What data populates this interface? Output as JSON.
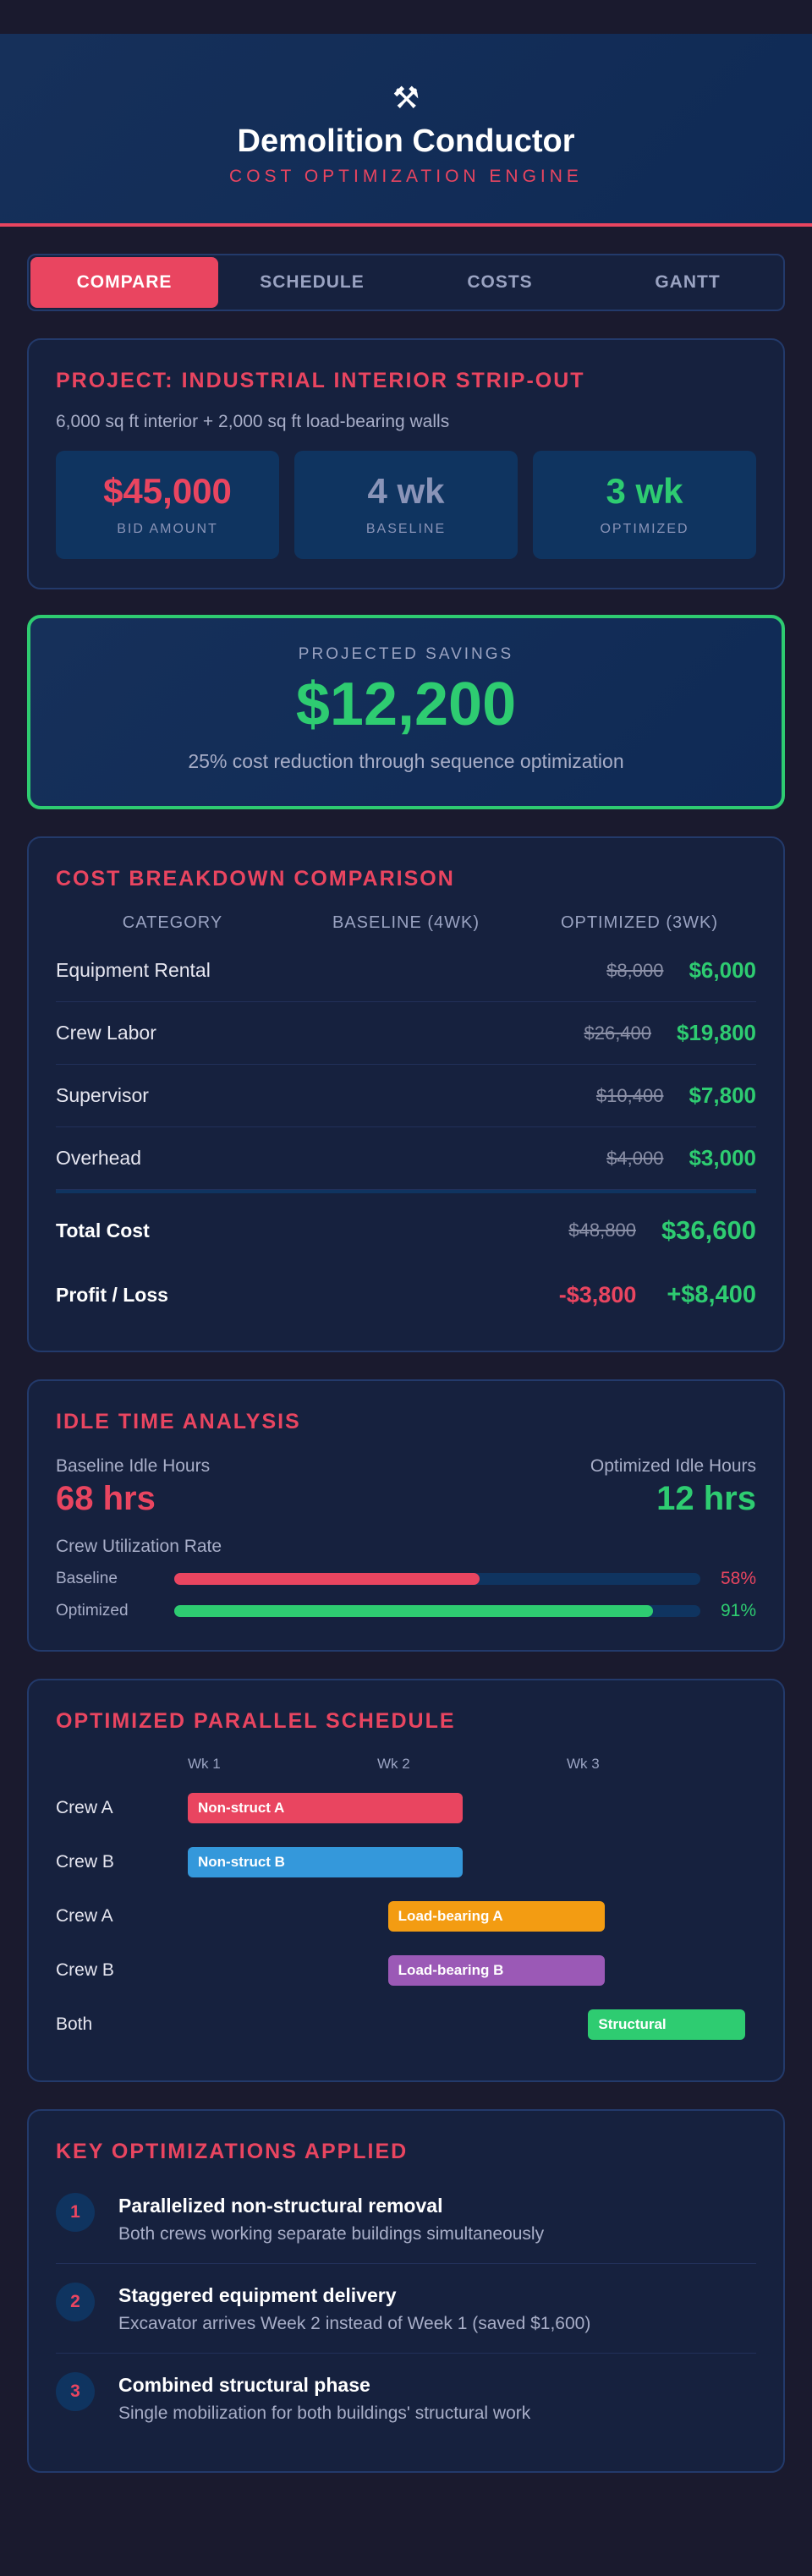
{
  "header": {
    "icon": "hammer-pick-icon",
    "title": "Demolition Conductor",
    "subtitle": "COST OPTIMIZATION ENGINE"
  },
  "tabs": [
    {
      "label": "COMPARE",
      "active": true
    },
    {
      "label": "SCHEDULE",
      "active": false
    },
    {
      "label": "COSTS",
      "active": false
    },
    {
      "label": "GANTT",
      "active": false
    }
  ],
  "project": {
    "title": "PROJECT: INDUSTRIAL INTERIOR STRIP-OUT",
    "description": "6,000 sq ft interior + 2,000 sq ft load-bearing walls",
    "stats": [
      {
        "value": "$45,000",
        "label": "BID AMOUNT",
        "color": "#e94560"
      },
      {
        "value": "4 wk",
        "label": "BASELINE",
        "color": "#8a94b8"
      },
      {
        "value": "3 wk",
        "label": "OPTIMIZED",
        "color": "#2ecc71"
      }
    ]
  },
  "savings": {
    "label": "PROJECTED SAVINGS",
    "value": "$12,200",
    "description": "25% cost reduction through sequence optimization"
  },
  "breakdown": {
    "title": "COST BREAKDOWN COMPARISON",
    "headers": [
      "CATEGORY",
      "BASELINE (4WK)",
      "OPTIMIZED (3WK)"
    ],
    "rows": [
      {
        "category": "Equipment Rental",
        "baseline": "$8,000",
        "optimized": "$6,000"
      },
      {
        "category": "Crew Labor",
        "baseline": "$26,400",
        "optimized": "$19,800"
      },
      {
        "category": "Supervisor",
        "baseline": "$10,400",
        "optimized": "$7,800"
      },
      {
        "category": "Overhead",
        "baseline": "$4,000",
        "optimized": "$3,000"
      }
    ],
    "total": {
      "category": "Total Cost",
      "baseline": "$48,800",
      "optimized": "$36,600"
    },
    "profit": {
      "category": "Profit / Loss",
      "baseline": "-$3,800",
      "optimized": "+$8,400"
    }
  },
  "idle": {
    "title": "IDLE TIME ANALYSIS",
    "baseline_label": "Baseline Idle Hours",
    "baseline_value": "68 hrs",
    "optimized_label": "Optimized Idle Hours",
    "optimized_value": "12 hrs",
    "util_title": "Crew Utilization Rate",
    "bars": [
      {
        "label": "Baseline",
        "pct_text": "58%",
        "fraction": 0.58,
        "color": "#e94560"
      },
      {
        "label": "Optimized",
        "pct_text": "91%",
        "fraction": 0.91,
        "color": "#2ecc71"
      }
    ]
  },
  "schedule": {
    "title": "OPTIMIZED PARALLEL SCHEDULE",
    "weeks": [
      "Wk 1",
      "Wk 2",
      "Wk 3"
    ],
    "tasks": [
      {
        "crew": "Crew A",
        "label": "Non-struct A",
        "start_week": 0,
        "end_week": 1.33,
        "color": "#e94560"
      },
      {
        "crew": "Crew B",
        "label": "Non-struct B",
        "start_week": 0,
        "end_week": 1.33,
        "color": "#3498db"
      },
      {
        "crew": "Crew A",
        "label": "Load-bearing A",
        "start_week": 0.97,
        "end_week": 2.02,
        "color": "#f39c12"
      },
      {
        "crew": "Crew B",
        "label": "Load-bearing B",
        "start_week": 0.97,
        "end_week": 2.02,
        "color": "#9b59b6"
      },
      {
        "crew": "Both",
        "label": "Structural",
        "start_week": 1.94,
        "end_week": 2.7,
        "color": "#2ecc71"
      }
    ]
  },
  "optimizations": {
    "title": "KEY OPTIMIZATIONS APPLIED",
    "items": [
      {
        "num": "1",
        "title": "Parallelized non-structural removal",
        "desc": "Both crews working separate buildings simultaneously"
      },
      {
        "num": "2",
        "title": "Staggered equipment delivery",
        "desc": "Excavator arrives Week 2 instead of Week 1 (saved $1,600)"
      },
      {
        "num": "3",
        "title": "Combined structural phase",
        "desc": "Single mobilization for both buildings' structural work"
      }
    ]
  }
}
